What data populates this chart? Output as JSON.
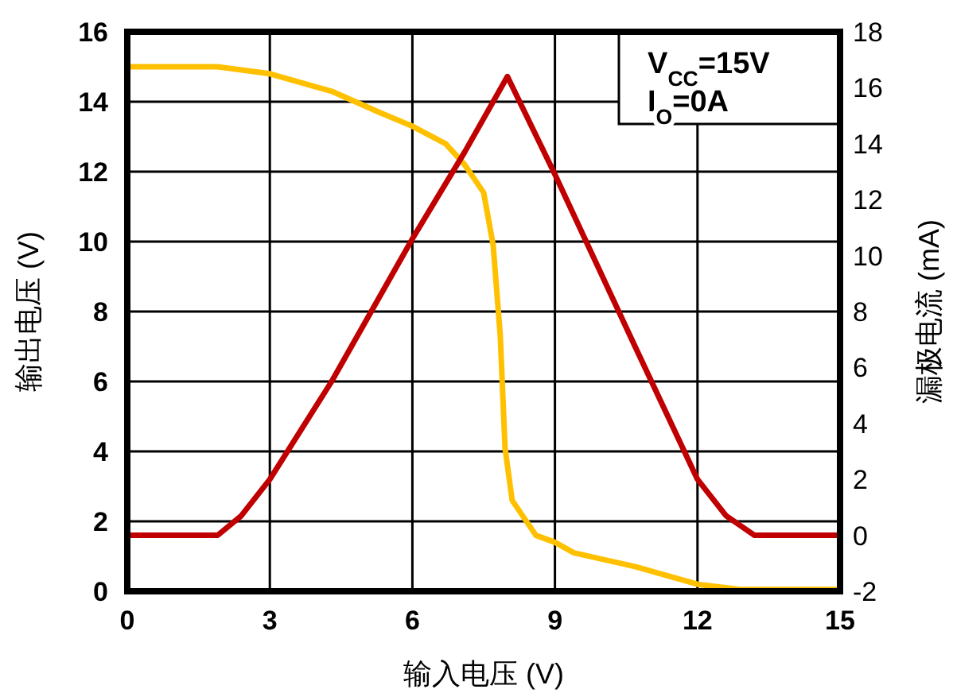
{
  "chart_data": {
    "type": "line",
    "xlabel": "输入电压 (V)",
    "ylabel": "输出电压 (V)",
    "y2label": "漏极电流 (mA)",
    "annotations": [
      "V$_{CC}$=15V",
      "I$_{O}$=0A"
    ],
    "xlim": [
      0,
      15
    ],
    "xticks": [
      0,
      3,
      6,
      9,
      12,
      15
    ],
    "ylim": [
      0,
      16
    ],
    "yticks": [
      0,
      2,
      4,
      6,
      8,
      10,
      12,
      14,
      16
    ],
    "y2lim": [
      -2,
      18
    ],
    "y2ticks": [
      -2,
      0,
      2,
      4,
      6,
      8,
      10,
      12,
      14,
      16,
      18
    ],
    "grid": true,
    "marker": "none",
    "line_style": "solid",
    "series": [
      {
        "color": "#ffc000",
        "x": [
          0,
          1.9,
          3,
          4.3,
          5.3,
          6,
          6.7,
          7.1,
          7.5,
          7.7,
          7.85,
          7.95,
          8.1,
          8.6,
          9,
          9.4,
          10.7,
          12,
          12.9,
          15
        ],
        "values": [
          15,
          15,
          14.8,
          14.3,
          13.7,
          13.3,
          12.8,
          12.2,
          11.4,
          9.9,
          7.3,
          4.1,
          2.6,
          1.6,
          1.4,
          1.1,
          0.7,
          0.2,
          0.05,
          0.05
        ]
      },
      {
        "color": "#c00000",
        "axis": "y2",
        "x": [
          0,
          1.9,
          2.4,
          3,
          4.3,
          6,
          7.1,
          8,
          9,
          10.7,
          12,
          12.6,
          13.2,
          15
        ],
        "values": [
          0,
          0,
          0.7,
          2,
          5.5,
          10.6,
          13.7,
          16.4,
          12.9,
          6.7,
          2,
          0.7,
          0,
          0
        ]
      }
    ]
  }
}
